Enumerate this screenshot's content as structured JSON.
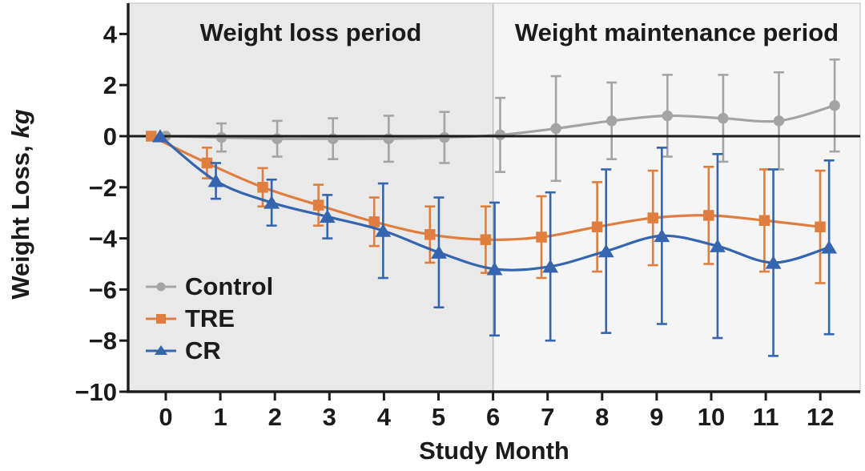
{
  "figure": {
    "background": "#ffffff",
    "text_color": "#1b1b1b",
    "plot_border_color": "#cdcdcd",
    "divider_color": "#bdbdbd",
    "zero_line_color": "#1c1c1c"
  },
  "chart_data": {
    "type": "line",
    "title": "",
    "xlabel": "Study Month",
    "ylabel": "Weight Loss, kg",
    "ylabel_parts": {
      "main": "Weight Loss,",
      "unit": "kg"
    },
    "x": [
      0,
      1,
      2,
      3,
      4,
      5,
      6,
      7,
      8,
      9,
      10,
      11,
      12
    ],
    "ylim": [
      -10,
      5
    ],
    "yticks": [
      4,
      2,
      0,
      -2,
      -4,
      -6,
      -8,
      -10
    ],
    "grid": false,
    "error_bars": true,
    "legend_position": "lower-left",
    "regions": [
      {
        "label": "Weight loss period",
        "x_start": 0,
        "x_end": 6,
        "bg": "#e9e9e9"
      },
      {
        "label": "Weight maintenance period",
        "x_start": 6,
        "x_end": 12,
        "bg": "#f5f5f5"
      }
    ],
    "series": [
      {
        "name": "Control",
        "marker": "circle",
        "color": "#a4a4a4",
        "x_offset": -0.03,
        "values": [
          0,
          -0.05,
          -0.1,
          -0.1,
          -0.1,
          -0.05,
          0.05,
          0.3,
          0.6,
          0.8,
          0.7,
          0.6,
          1.2
        ],
        "error": [
          0,
          0.55,
          0.7,
          0.8,
          0.9,
          1.0,
          1.45,
          2.05,
          1.5,
          1.6,
          1.7,
          1.9,
          1.8
        ]
      },
      {
        "name": "TRE",
        "marker": "square",
        "color": "#df7e3e",
        "x_offset": -0.29,
        "values": [
          0,
          -1.05,
          -2.0,
          -2.7,
          -3.35,
          -3.85,
          -4.05,
          -3.95,
          -3.55,
          -3.2,
          -3.1,
          -3.3,
          -3.55
        ],
        "error": [
          0,
          0.6,
          0.75,
          0.8,
          0.95,
          1.1,
          1.3,
          1.6,
          1.75,
          1.85,
          1.9,
          2.0,
          2.2
        ]
      },
      {
        "name": "CR",
        "marker": "triangle",
        "color": "#3565af",
        "x_offset": -0.13,
        "values": [
          0,
          -1.75,
          -2.6,
          -3.15,
          -3.7,
          -4.55,
          -5.2,
          -5.1,
          -4.5,
          -3.9,
          -4.3,
          -4.95,
          -4.35
        ],
        "error": [
          0,
          0.7,
          0.9,
          0.85,
          1.85,
          2.15,
          2.6,
          2.9,
          3.2,
          3.45,
          3.6,
          3.65,
          3.4
        ]
      }
    ]
  }
}
